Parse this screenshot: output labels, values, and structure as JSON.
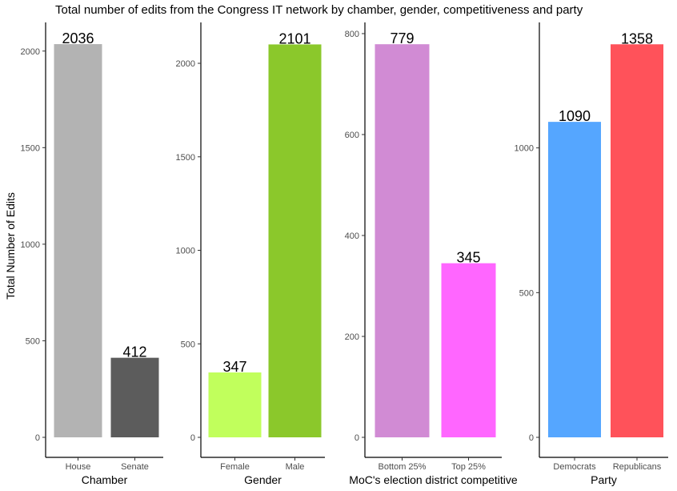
{
  "title": "Total number of edits from the Congress IT network by chamber, gender, competitiveness and party",
  "ylabel": "Total Number of Edits",
  "chart_data": [
    {
      "type": "bar",
      "xlabel": "Chamber",
      "categories": [
        "House",
        "Senate"
      ],
      "values": [
        2036,
        412
      ],
      "colors": [
        "#b3b3b3",
        "#5c5c5c"
      ],
      "ylim": [
        0,
        2140
      ],
      "yticks": [
        0,
        500,
        1000,
        1500,
        2000
      ]
    },
    {
      "type": "bar",
      "xlabel": "Gender",
      "categories": [
        "Female",
        "Male"
      ],
      "values": [
        347,
        2101
      ],
      "colors": [
        "#c1ff5c",
        "#8bc82b"
      ],
      "ylim": [
        0,
        2210
      ],
      "yticks": [
        0,
        500,
        1000,
        1500,
        2000
      ]
    },
    {
      "type": "bar",
      "xlabel": "MoC's election district competitive",
      "categories": [
        "Bottom 25%",
        "Top 25%"
      ],
      "values": [
        779,
        345
      ],
      "colors": [
        "#d18bd4",
        "#ff66ff"
      ],
      "ylim": [
        0,
        819
      ],
      "yticks": [
        0,
        200,
        400,
        600,
        800
      ]
    },
    {
      "type": "bar",
      "xlabel": "Party",
      "categories": [
        "Democrats",
        "Republicans"
      ],
      "values": [
        1090,
        1358
      ],
      "colors": [
        "#55a6ff",
        "#ff525a"
      ],
      "ylim": [
        0,
        1428
      ],
      "yticks": [
        0,
        500,
        1000
      ]
    }
  ]
}
